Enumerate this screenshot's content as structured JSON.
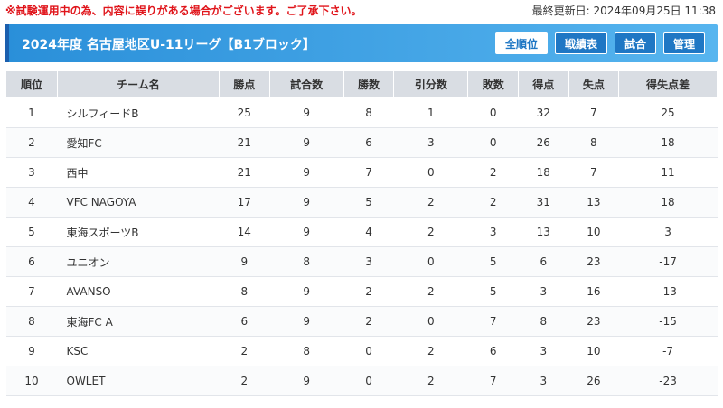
{
  "topbar": {
    "notice": "※試験運用中の為、内容に誤りがある場合がございます。ご了承下さい。",
    "updated": "最終更新日: 2024年09月25日 11:38"
  },
  "header": {
    "title": "2024年度 名古屋地区U-11リーグ【B1ブロック】",
    "tabs": [
      {
        "label": "全順位",
        "active": true
      },
      {
        "label": "戦績表",
        "active": false
      },
      {
        "label": "試合",
        "active": false
      },
      {
        "label": "管理",
        "active": false
      }
    ]
  },
  "table": {
    "headers": [
      "順位",
      "チーム名",
      "勝点",
      "試合数",
      "勝数",
      "引分数",
      "敗数",
      "得点",
      "失点",
      "得失点差"
    ],
    "rows": [
      [
        "1",
        "シルフィードB",
        "25",
        "9",
        "8",
        "1",
        "0",
        "32",
        "7",
        "25"
      ],
      [
        "2",
        "愛知FC",
        "21",
        "9",
        "6",
        "3",
        "0",
        "26",
        "8",
        "18"
      ],
      [
        "3",
        "西中",
        "21",
        "9",
        "7",
        "0",
        "2",
        "18",
        "7",
        "11"
      ],
      [
        "4",
        "VFC NAGOYA",
        "17",
        "9",
        "5",
        "2",
        "2",
        "31",
        "13",
        "18"
      ],
      [
        "5",
        "東海スポーツB",
        "14",
        "9",
        "4",
        "2",
        "3",
        "13",
        "10",
        "3"
      ],
      [
        "6",
        "ユニオン",
        "9",
        "8",
        "3",
        "0",
        "5",
        "6",
        "23",
        "-17"
      ],
      [
        "7",
        "AVANSO",
        "8",
        "9",
        "2",
        "2",
        "5",
        "3",
        "16",
        "-13"
      ],
      [
        "8",
        "東海FC A",
        "6",
        "9",
        "2",
        "0",
        "7",
        "8",
        "23",
        "-15"
      ],
      [
        "9",
        "KSC",
        "2",
        "8",
        "0",
        "2",
        "6",
        "3",
        "10",
        "-7"
      ],
      [
        "10",
        "OWLET",
        "2",
        "9",
        "0",
        "2",
        "7",
        "3",
        "26",
        "-23"
      ]
    ]
  },
  "colors": {
    "accent": "#2a8fd9",
    "notice": "#e0151b",
    "header_bg": "#d9dde3"
  }
}
